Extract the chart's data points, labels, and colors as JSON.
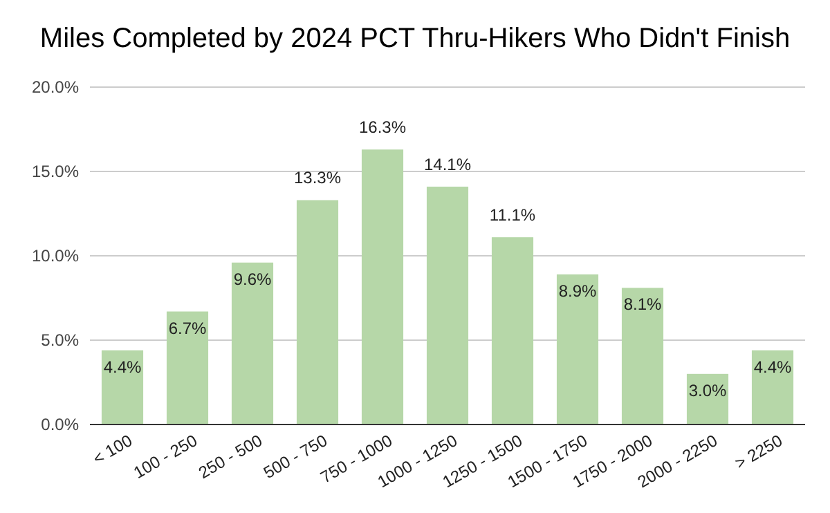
{
  "chart_data": {
    "type": "bar",
    "title": "Miles Completed by 2024 PCT Thru-Hikers Who Didn't Finish",
    "categories": [
      "< 100",
      "100 - 250",
      "250 - 500",
      "500 - 750",
      "750 - 1000",
      "1000 - 1250",
      "1250 - 1500",
      "1500 - 1750",
      "1750 - 2000",
      "2000 - 2250",
      "> 2250"
    ],
    "values": [
      4.4,
      6.7,
      9.6,
      13.3,
      16.3,
      14.1,
      11.1,
      8.9,
      8.1,
      3.0,
      4.4
    ],
    "value_labels": [
      "4.4%",
      "6.7%",
      "9.6%",
      "13.3%",
      "16.3%",
      "14.1%",
      "11.1%",
      "8.9%",
      "8.1%",
      "3.0%",
      "4.4%"
    ],
    "color": "#b6d7a8",
    "ylim": [
      0,
      20
    ],
    "yticks": [
      {
        "value": 0,
        "label": "0.0%"
      },
      {
        "value": 5,
        "label": "5.0%"
      },
      {
        "value": 10,
        "label": "10.0%"
      },
      {
        "value": 15,
        "label": "15.0%"
      },
      {
        "value": 20,
        "label": "20.0%"
      }
    ],
    "grid": "y"
  }
}
